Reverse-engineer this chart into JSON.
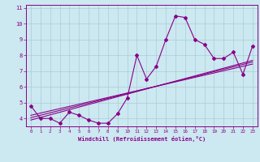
{
  "title": "",
  "xlabel": "Windchill (Refroidissement éolien,°C)",
  "xlim": [
    -0.5,
    23.5
  ],
  "ylim": [
    3.5,
    11.2
  ],
  "yticks": [
    4,
    5,
    6,
    7,
    8,
    9,
    10,
    11
  ],
  "xticks": [
    0,
    1,
    2,
    3,
    4,
    5,
    6,
    7,
    8,
    9,
    10,
    11,
    12,
    13,
    14,
    15,
    16,
    17,
    18,
    19,
    20,
    21,
    22,
    23
  ],
  "bg_color": "#cce8f0",
  "grid_color": "#aaccd8",
  "line_color": "#880088",
  "scatter_data": [
    [
      0,
      4.8
    ],
    [
      1,
      4.0
    ],
    [
      2,
      4.0
    ],
    [
      3,
      3.7
    ],
    [
      4,
      4.4
    ],
    [
      5,
      4.2
    ],
    [
      6,
      3.9
    ],
    [
      7,
      3.7
    ],
    [
      8,
      3.7
    ],
    [
      9,
      4.3
    ],
    [
      10,
      5.3
    ],
    [
      11,
      8.0
    ],
    [
      12,
      6.5
    ],
    [
      13,
      7.3
    ],
    [
      14,
      9.0
    ],
    [
      15,
      10.5
    ],
    [
      16,
      10.4
    ],
    [
      17,
      9.0
    ],
    [
      18,
      8.7
    ],
    [
      19,
      7.8
    ],
    [
      20,
      7.8
    ],
    [
      21,
      8.2
    ],
    [
      22,
      6.8
    ],
    [
      23,
      8.6
    ]
  ],
  "line1": [
    [
      0,
      4.2
    ],
    [
      23,
      7.45
    ]
  ],
  "line2": [
    [
      0,
      4.05
    ],
    [
      23,
      7.58
    ]
  ],
  "line3": [
    [
      0,
      3.9
    ],
    [
      23,
      7.68
    ]
  ]
}
